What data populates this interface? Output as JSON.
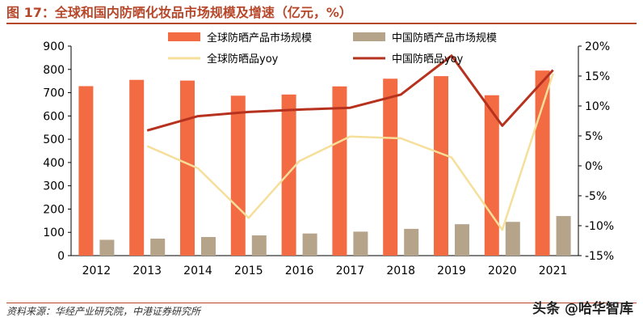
{
  "title": "图 17：全球和国内防晒化妆品市场规模及增速（亿元，%）",
  "source": "资料来源：华经产业研究院，中港证券研究所",
  "watermark": "头条 @哈华智库",
  "colors": {
    "global_bar": "#f26b43",
    "china_bar": "#b5a48a",
    "global_yoy": "#f5df9a",
    "china_yoy": "#b7321e",
    "accent": "#b7472a"
  },
  "chart_data": {
    "type": "bar+line",
    "categories": [
      "2012",
      "2013",
      "2014",
      "2015",
      "2016",
      "2017",
      "2018",
      "2019",
      "2020",
      "2021"
    ],
    "series": [
      {
        "name": "全球防晒产品市场规模",
        "type": "bar",
        "axis": "left",
        "values": [
          728,
          755,
          752,
          687,
          692,
          727,
          760,
          771,
          689,
          795
        ]
      },
      {
        "name": "中国防晒产品市场规模",
        "type": "bar",
        "axis": "left",
        "values": [
          68,
          73,
          80,
          87,
          95,
          103,
          115,
          135,
          145,
          170
        ]
      },
      {
        "name": "全球防晒品yoy",
        "type": "line",
        "axis": "right",
        "values": [
          null,
          3.3,
          -0.4,
          -8.7,
          0.8,
          4.9,
          4.6,
          1.4,
          -10.7,
          15.4
        ]
      },
      {
        "name": "中国防晒品yoy",
        "type": "line",
        "axis": "right",
        "values": [
          null,
          5.9,
          8.3,
          9.0,
          9.4,
          9.7,
          11.9,
          18.4,
          6.7,
          16.0
        ]
      }
    ],
    "y_left": {
      "min": 0,
      "max": 900,
      "step": 100,
      "ticks": [
        "0",
        "100",
        "200",
        "300",
        "400",
        "500",
        "600",
        "700",
        "800",
        "900"
      ]
    },
    "y_right": {
      "min": -15,
      "max": 20,
      "step": 5,
      "ticks": [
        "-15%",
        "-10%",
        "-5%",
        "0%",
        "5%",
        "10%",
        "15%",
        "20%"
      ]
    },
    "legend": {
      "position": "top",
      "entries": [
        "全球防晒产品市场规模",
        "中国防晒产品市场规模",
        "全球防晒品yoy",
        "中国防晒品yoy"
      ]
    }
  }
}
